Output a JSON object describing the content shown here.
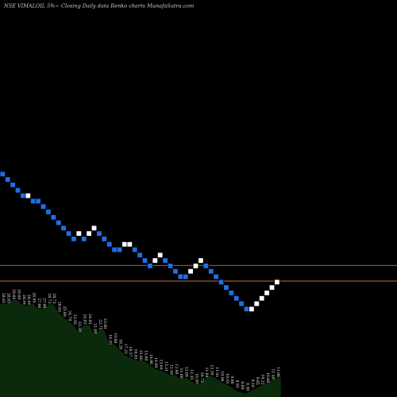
{
  "chart_data": {
    "type": "renko",
    "title_parts": [
      "NSE VIMALOIL",
      "5%~",
      "Closing",
      "Daily data",
      "Renko",
      "charts",
      "MunafaSutra.com"
    ],
    "colors": {
      "background": "#000000",
      "up_brick": "#ffffff",
      "down_brick": "#1e6fe6",
      "brick_border": "#000000",
      "reference_line": "#b8742f",
      "label_area": "#0b2a0b",
      "label_text": "#e6e6e6",
      "title_text": "#cfcfcf"
    },
    "bricks": [
      {
        "dir": "down",
        "level": 0
      },
      {
        "dir": "down",
        "level": 1
      },
      {
        "dir": "down",
        "level": 2
      },
      {
        "dir": "down",
        "level": 3
      },
      {
        "dir": "down",
        "level": 4
      },
      {
        "dir": "up",
        "level": 4
      },
      {
        "dir": "down",
        "level": 5
      },
      {
        "dir": "down",
        "level": 5
      },
      {
        "dir": "down",
        "level": 6
      },
      {
        "dir": "down",
        "level": 7
      },
      {
        "dir": "down",
        "level": 8
      },
      {
        "dir": "down",
        "level": 9
      },
      {
        "dir": "down",
        "level": 10
      },
      {
        "dir": "down",
        "level": 11
      },
      {
        "dir": "down",
        "level": 12
      },
      {
        "dir": "up",
        "level": 11
      },
      {
        "dir": "down",
        "level": 12
      },
      {
        "dir": "up",
        "level": 11
      },
      {
        "dir": "up",
        "level": 10
      },
      {
        "dir": "down",
        "level": 11
      },
      {
        "dir": "down",
        "level": 12
      },
      {
        "dir": "down",
        "level": 13
      },
      {
        "dir": "down",
        "level": 14
      },
      {
        "dir": "down",
        "level": 14
      },
      {
        "dir": "up",
        "level": 13
      },
      {
        "dir": "up",
        "level": 13
      },
      {
        "dir": "down",
        "level": 14
      },
      {
        "dir": "down",
        "level": 15
      },
      {
        "dir": "down",
        "level": 16
      },
      {
        "dir": "down",
        "level": 17
      },
      {
        "dir": "up",
        "level": 16
      },
      {
        "dir": "up",
        "level": 15
      },
      {
        "dir": "down",
        "level": 16
      },
      {
        "dir": "down",
        "level": 17
      },
      {
        "dir": "down",
        "level": 18
      },
      {
        "dir": "down",
        "level": 19
      },
      {
        "dir": "down",
        "level": 19
      },
      {
        "dir": "up",
        "level": 18
      },
      {
        "dir": "up",
        "level": 17
      },
      {
        "dir": "up",
        "level": 16
      },
      {
        "dir": "down",
        "level": 17
      },
      {
        "dir": "down",
        "level": 18
      },
      {
        "dir": "down",
        "level": 19
      },
      {
        "dir": "down",
        "level": 20
      },
      {
        "dir": "down",
        "level": 21
      },
      {
        "dir": "down",
        "level": 22
      },
      {
        "dir": "down",
        "level": 23
      },
      {
        "dir": "down",
        "level": 24
      },
      {
        "dir": "down",
        "level": 25
      },
      {
        "dir": "up",
        "level": 25
      },
      {
        "dir": "up",
        "level": 24
      },
      {
        "dir": "up",
        "level": 23
      },
      {
        "dir": "up",
        "level": 22
      },
      {
        "dir": "up",
        "level": 21
      },
      {
        "dir": "up",
        "level": 20
      }
    ],
    "reference_lines": [
      {
        "type": "horizontal",
        "level": 17.4
      },
      {
        "type": "horizontal",
        "level": 20.3
      }
    ],
    "close_labels": [
      "28.83",
      "28.83",
      "29.69",
      "29.69",
      "28.44",
      "28.44",
      "28.95",
      "27.66",
      "27.66",
      "28.73",
      "28.73",
      "26.83",
      "25.80",
      "24.78",
      "23.95",
      "22.30",
      "24.03",
      "24.03",
      "21.88",
      "22.75",
      "23.00",
      "19.35",
      "19.68",
      "18.28",
      "17.22",
      "16.57",
      "16.03",
      "15.80",
      "15.69",
      "14.86",
      "14.09",
      "13.64",
      "13.21",
      "12.50",
      "12.60",
      "11.66",
      "12.00",
      "11.35",
      "10.50",
      "10.73",
      "11.84",
      "12.39",
      "11.91",
      "10.96",
      "10.45",
      "9.86",
      "8.93",
      "8.60",
      "8.30",
      "9.10",
      "9.65",
      "10.22",
      "10.68",
      "11.48",
      "11.96"
    ]
  }
}
